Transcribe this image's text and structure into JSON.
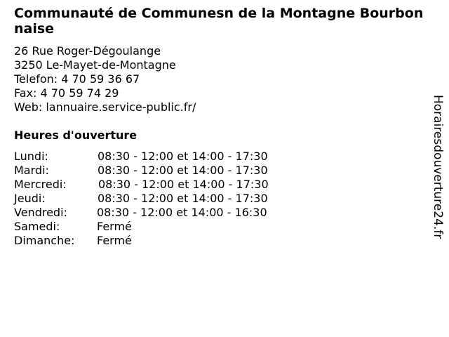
{
  "title": "Communauté de Communesn de la Montagne Bourbonnaise",
  "address": {
    "street": "26 Rue Roger-Dégoulange",
    "city": "3250 Le-Mayet-de-Montagne",
    "phone": "Telefon: 4 70 59 36 67",
    "fax": "Fax: 4 70 59 74 29",
    "web": "Web: lannuaire.service-public.fr/"
  },
  "hours_heading": "Heures d'ouverture",
  "hours": [
    {
      "day": "Lundi:",
      "time": "08:30 - 12:00 et 14:00 - 17:30"
    },
    {
      "day": "Mardi:",
      "time": "08:30 - 12:00 et 14:00 - 17:30"
    },
    {
      "day": "Mercredi:",
      "time": "08:30 - 12:00 et 14:00 - 17:30"
    },
    {
      "day": "Jeudi:",
      "time": "08:30 - 12:00 et 14:00 - 17:30"
    },
    {
      "day": "Vendredi:",
      "time": "08:30 - 12:00 et 14:00 - 16:30"
    },
    {
      "day": "Samedi:",
      "time": "Fermé"
    },
    {
      "day": "Dimanche:",
      "time": "Fermé"
    }
  ],
  "watermark": "Horairesdouverture24.fr"
}
